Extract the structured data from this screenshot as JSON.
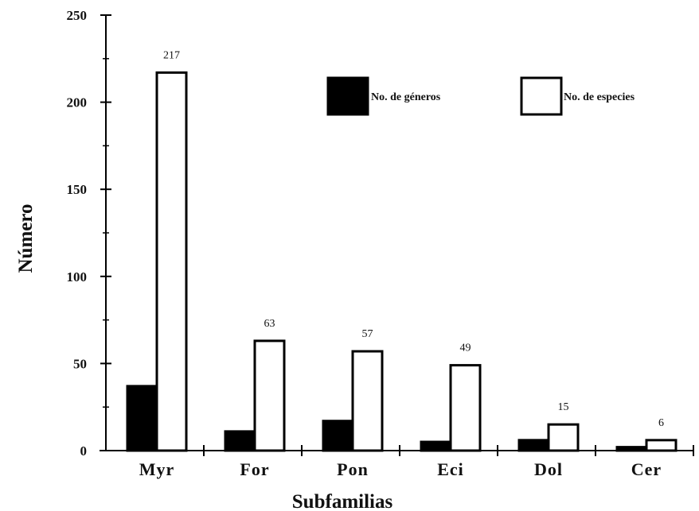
{
  "chart_data": {
    "type": "bar",
    "title": "",
    "xlabel": "Subfamilias",
    "ylabel": "Número",
    "categories": [
      "Myr",
      "For",
      "Pon",
      "Eci",
      "Dol",
      "Cer"
    ],
    "ylim": [
      0,
      250
    ],
    "yticks": [
      0,
      50,
      100,
      150,
      200,
      250
    ],
    "grid": false,
    "legend_position": "top-right",
    "series": [
      {
        "name": "No. de géneros",
        "values": [
          37,
          11,
          17,
          5,
          6,
          2
        ],
        "color": "#000000",
        "labels": [
          "",
          "",
          "",
          "",
          "",
          ""
        ]
      },
      {
        "name": "No. de especies",
        "values": [
          217,
          63,
          57,
          49,
          15,
          6
        ],
        "color": "#ffffff",
        "labels": [
          "217",
          "63",
          "57",
          "49",
          "15",
          "6"
        ]
      }
    ]
  }
}
